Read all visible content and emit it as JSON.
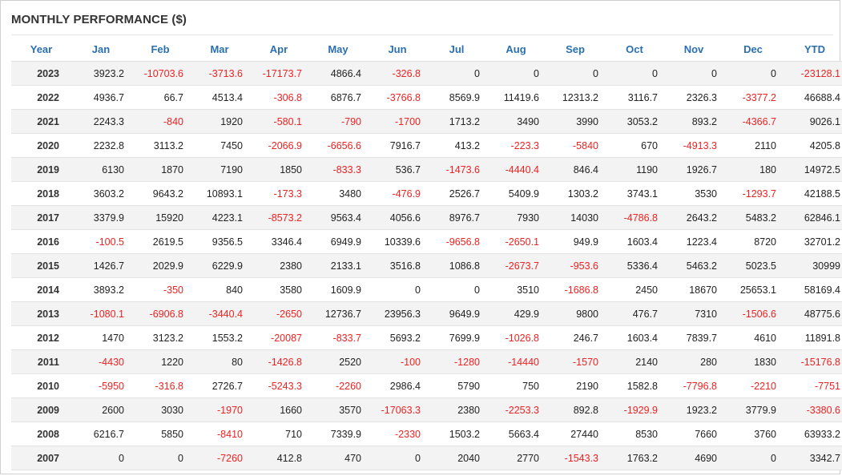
{
  "title": "MONTHLY PERFORMANCE ($)",
  "colors": {
    "header_text": "#2a6fb0",
    "negative": "#ee2222",
    "row_stripe": "#f3f3f3"
  },
  "columns": [
    "Year",
    "Jan",
    "Feb",
    "Mar",
    "Apr",
    "May",
    "Jun",
    "Jul",
    "Aug",
    "Sep",
    "Oct",
    "Nov",
    "Dec",
    "YTD"
  ],
  "rows": [
    {
      "year": "2023",
      "values": [
        "3923.2",
        "-10703.6",
        "-3713.6",
        "-17173.7",
        "4866.4",
        "-326.8",
        "0",
        "0",
        "0",
        "0",
        "0",
        "0",
        "-23128.1"
      ]
    },
    {
      "year": "2022",
      "values": [
        "4936.7",
        "66.7",
        "4513.4",
        "-306.8",
        "6876.7",
        "-3766.8",
        "8569.9",
        "11419.6",
        "12313.2",
        "3116.7",
        "2326.3",
        "-3377.2",
        "46688.4"
      ]
    },
    {
      "year": "2021",
      "values": [
        "2243.3",
        "-840",
        "1920",
        "-580.1",
        "-790",
        "-1700",
        "1713.2",
        "3490",
        "3990",
        "3053.2",
        "893.2",
        "-4366.7",
        "9026.1"
      ]
    },
    {
      "year": "2020",
      "values": [
        "2232.8",
        "3113.2",
        "7450",
        "-2066.9",
        "-6656.6",
        "7916.7",
        "413.2",
        "-223.3",
        "-5840",
        "670",
        "-4913.3",
        "2110",
        "4205.8"
      ]
    },
    {
      "year": "2019",
      "values": [
        "6130",
        "1870",
        "7190",
        "1850",
        "-833.3",
        "536.7",
        "-1473.6",
        "-4440.4",
        "846.4",
        "1190",
        "1926.7",
        "180",
        "14972.5"
      ]
    },
    {
      "year": "2018",
      "values": [
        "3603.2",
        "9643.2",
        "10893.1",
        "-173.3",
        "3480",
        "-476.9",
        "2526.7",
        "5409.9",
        "1303.2",
        "3743.1",
        "3530",
        "-1293.7",
        "42188.5"
      ]
    },
    {
      "year": "2017",
      "values": [
        "3379.9",
        "15920",
        "4223.1",
        "-8573.2",
        "9563.4",
        "4056.6",
        "8976.7",
        "7930",
        "14030",
        "-4786.8",
        "2643.2",
        "5483.2",
        "62846.1"
      ]
    },
    {
      "year": "2016",
      "values": [
        "-100.5",
        "2619.5",
        "9356.5",
        "3346.4",
        "6949.9",
        "10339.6",
        "-9656.8",
        "-2650.1",
        "949.9",
        "1603.4",
        "1223.4",
        "8720",
        "32701.2"
      ]
    },
    {
      "year": "2015",
      "values": [
        "1426.7",
        "2029.9",
        "6229.9",
        "2380",
        "2133.1",
        "3516.8",
        "1086.8",
        "-2673.7",
        "-953.6",
        "5336.4",
        "5463.2",
        "5023.5",
        "30999"
      ]
    },
    {
      "year": "2014",
      "values": [
        "3893.2",
        "-350",
        "840",
        "3580",
        "1609.9",
        "0",
        "0",
        "3510",
        "-1686.8",
        "2450",
        "18670",
        "25653.1",
        "58169.4"
      ]
    },
    {
      "year": "2013",
      "values": [
        "-1080.1",
        "-6906.8",
        "-3440.4",
        "-2650",
        "12736.7",
        "23956.3",
        "9649.9",
        "429.9",
        "9800",
        "476.7",
        "7310",
        "-1506.6",
        "48775.6"
      ]
    },
    {
      "year": "2012",
      "values": [
        "1470",
        "3123.2",
        "1553.2",
        "-20087",
        "-833.7",
        "5693.2",
        "7699.9",
        "-1026.8",
        "246.7",
        "1603.4",
        "7839.7",
        "4610",
        "11891.8"
      ]
    },
    {
      "year": "2011",
      "values": [
        "-4430",
        "1220",
        "80",
        "-1426.8",
        "2520",
        "-100",
        "-1280",
        "-14440",
        "-1570",
        "2140",
        "280",
        "1830",
        "-15176.8"
      ]
    },
    {
      "year": "2010",
      "values": [
        "-5950",
        "-316.8",
        "2726.7",
        "-5243.3",
        "-2260",
        "2986.4",
        "5790",
        "750",
        "2190",
        "1582.8",
        "-7796.8",
        "-2210",
        "-7751"
      ]
    },
    {
      "year": "2009",
      "values": [
        "2600",
        "3030",
        "-1970",
        "1660",
        "3570",
        "-17063.3",
        "2380",
        "-2253.3",
        "892.8",
        "-1929.9",
        "1923.2",
        "3779.9",
        "-3380.6"
      ]
    },
    {
      "year": "2008",
      "values": [
        "6216.7",
        "5850",
        "-8410",
        "710",
        "7339.9",
        "-2330",
        "1503.2",
        "5663.4",
        "27440",
        "8530",
        "7660",
        "3760",
        "63933.2"
      ]
    },
    {
      "year": "2007",
      "values": [
        "0",
        "0",
        "-7260",
        "412.8",
        "470",
        "0",
        "2040",
        "2770",
        "-1543.3",
        "1763.2",
        "4690",
        "0",
        "3342.7"
      ]
    }
  ]
}
